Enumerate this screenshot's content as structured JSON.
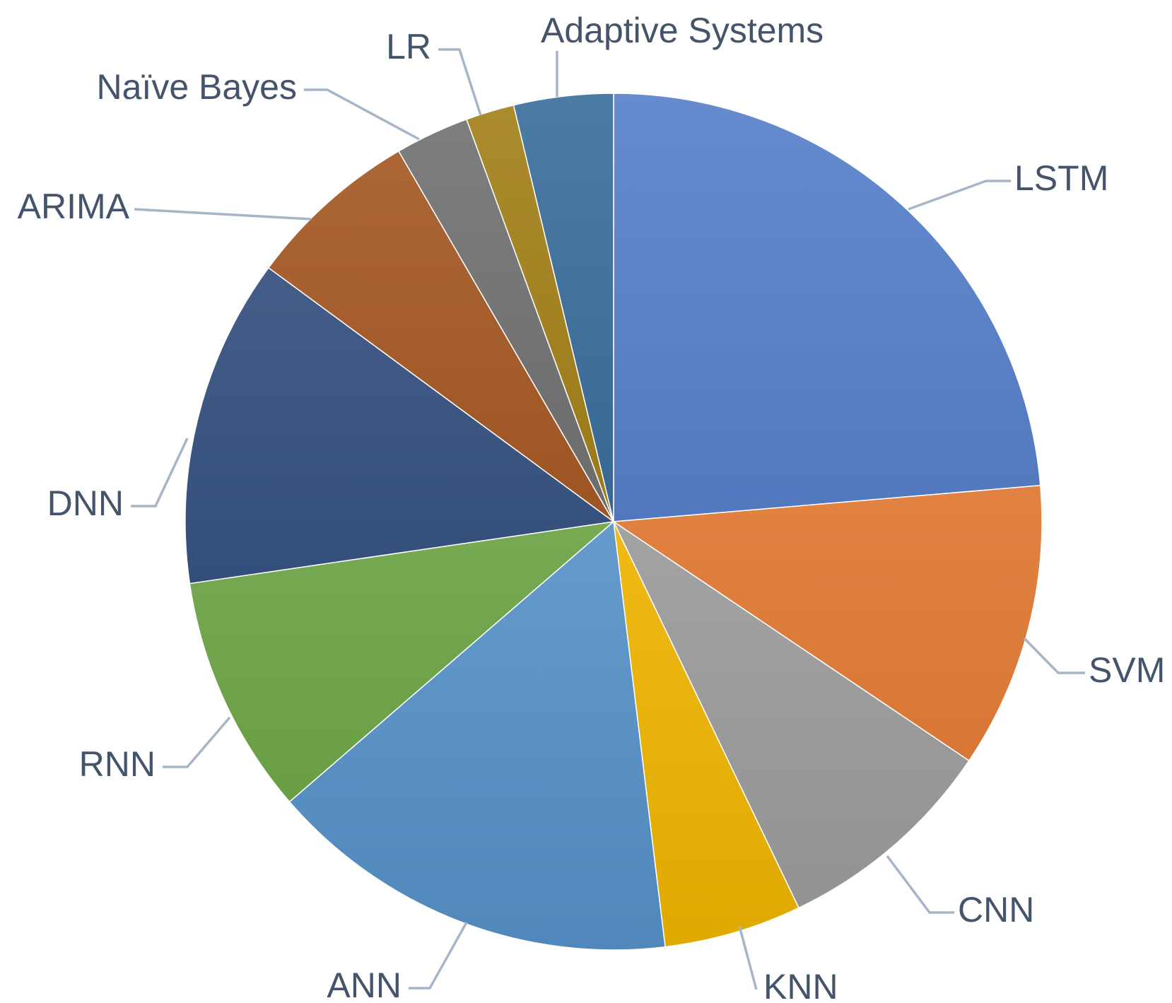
{
  "chart_data": {
    "type": "pie",
    "title": "",
    "start_angle_deg": 0,
    "direction": "clockwise",
    "legend": "none",
    "slices": [
      {
        "label": "LSTM",
        "value": 24.6,
        "color": "#4472C4"
      },
      {
        "label": "SVM",
        "value": 11.2,
        "color": "#ED7D31"
      },
      {
        "label": "CNN",
        "value": 8.8,
        "color": "#A5A5A5"
      },
      {
        "label": "KNN",
        "value": 5.4,
        "color": "#FFC000"
      },
      {
        "label": "ANN",
        "value": 16.2,
        "color": "#5B9BD5"
      },
      {
        "label": "RNN",
        "value": 9.4,
        "color": "#70AD47"
      },
      {
        "label": "DNN",
        "value": 12.9,
        "color": "#264478"
      },
      {
        "label": "ARIMA",
        "value": 6.8,
        "color": "#9E480E"
      },
      {
        "label": "Naïve Bayes",
        "value": 2.9,
        "color": "#636363"
      },
      {
        "label": "LR",
        "value": 1.9,
        "color": "#997300"
      },
      {
        "label": "Adaptive Systems",
        "value": 3.9,
        "color": "#255E91"
      }
    ]
  }
}
